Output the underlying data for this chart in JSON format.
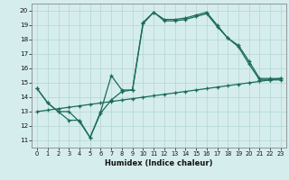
{
  "xlabel": "Humidex (Indice chaleur)",
  "xlim": [
    -0.5,
    23.5
  ],
  "ylim": [
    10.5,
    20.5
  ],
  "yticks": [
    11,
    12,
    13,
    14,
    15,
    16,
    17,
    18,
    19,
    20
  ],
  "xticks": [
    0,
    1,
    2,
    3,
    4,
    5,
    6,
    7,
    8,
    9,
    10,
    11,
    12,
    13,
    14,
    15,
    16,
    17,
    18,
    19,
    20,
    21,
    22,
    23
  ],
  "bg_color": "#d6eded",
  "line_color": "#1a6b5a",
  "grid_color": "#b8d8d8",
  "line1_x": [
    0,
    1,
    2,
    3,
    4,
    5,
    6,
    7,
    8,
    9,
    10,
    11,
    12,
    13,
    14,
    15,
    16,
    17,
    18,
    19,
    20,
    21,
    22,
    23
  ],
  "line1_y": [
    14.6,
    13.6,
    13.0,
    13.0,
    12.3,
    11.2,
    13.0,
    15.5,
    14.5,
    14.5,
    19.2,
    19.9,
    19.4,
    19.4,
    19.5,
    19.7,
    19.9,
    19.0,
    18.1,
    17.6,
    16.5,
    15.3,
    15.3,
    15.3
  ],
  "line2_x": [
    0,
    1,
    2,
    3,
    4,
    5,
    6,
    7,
    8,
    9,
    10,
    11,
    12,
    13,
    14,
    15,
    16,
    17,
    18,
    19,
    20,
    21,
    22,
    23
  ],
  "line2_y": [
    14.6,
    13.6,
    13.0,
    12.4,
    12.4,
    11.2,
    12.9,
    13.8,
    14.4,
    14.5,
    19.1,
    19.9,
    19.3,
    19.3,
    19.4,
    19.6,
    19.8,
    18.9,
    18.1,
    17.5,
    16.3,
    15.2,
    15.2,
    15.2
  ],
  "line3_x": [
    0,
    1,
    2,
    3,
    4,
    5,
    6,
    7,
    8,
    9,
    10,
    11,
    12,
    13,
    14,
    15,
    16,
    17,
    18,
    19,
    20,
    21,
    22,
    23
  ],
  "line3_y": [
    13.0,
    13.1,
    13.2,
    13.3,
    13.4,
    13.5,
    13.6,
    13.7,
    13.8,
    13.9,
    14.0,
    14.1,
    14.2,
    14.3,
    14.4,
    14.5,
    14.6,
    14.7,
    14.8,
    14.9,
    15.0,
    15.1,
    15.2,
    15.3
  ]
}
